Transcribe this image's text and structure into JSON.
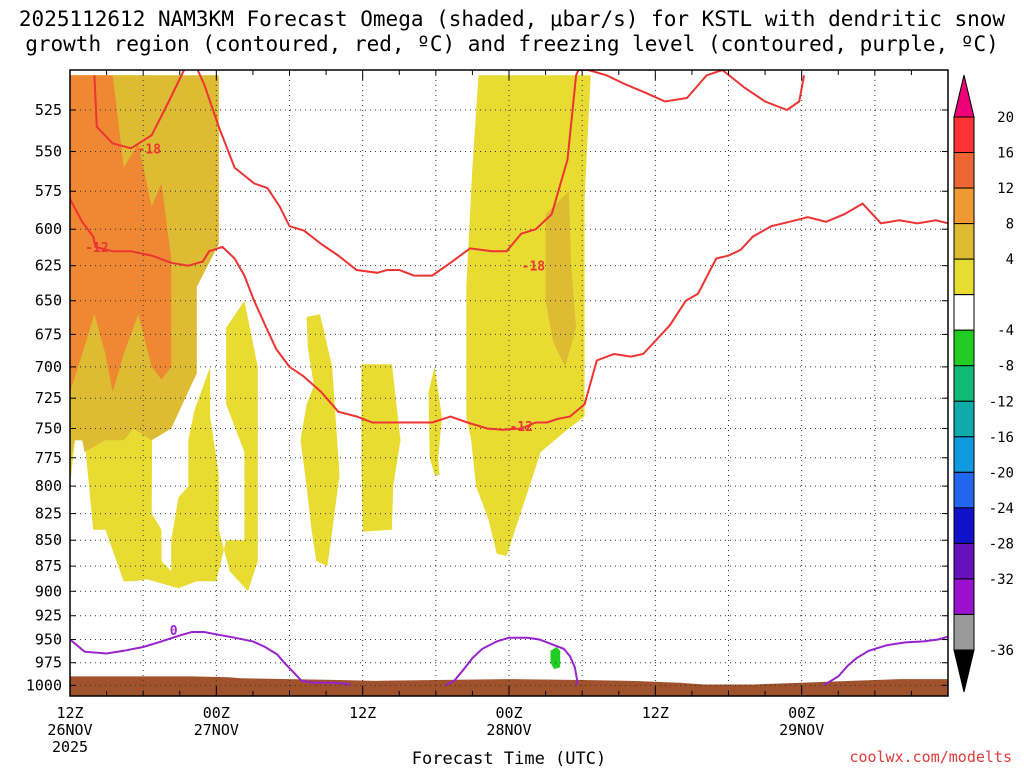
{
  "chart_data": {
    "type": "heatmap",
    "title_line1": "2025112612 NAM3KM Forecast Omega (shaded, μbar/s) for KSTL with dendritic snow",
    "title_line2": "growth region (contoured, red, ºC) and freezing level (contoured, purple, ºC)",
    "xlabel": "Forecast Time (UTC)",
    "credit": "coolwx.com/modelts",
    "x_range_hours": [
      0,
      72
    ],
    "y_range_mb": [
      1012,
      502
    ],
    "y_ticks": [
      525,
      550,
      575,
      600,
      625,
      650,
      675,
      700,
      725,
      750,
      775,
      800,
      825,
      850,
      875,
      900,
      925,
      950,
      975,
      1000
    ],
    "x_ticks": [
      {
        "h": 0,
        "line1": "12Z",
        "line2": "26NOV",
        "line3": "2025"
      },
      {
        "h": 12,
        "line1": "00Z",
        "line2": "27NOV",
        "line3": ""
      },
      {
        "h": 24,
        "line1": "12Z",
        "line2": "",
        "line3": ""
      },
      {
        "h": 36,
        "line1": "00Z",
        "line2": "28NOV",
        "line3": ""
      },
      {
        "h": 48,
        "line1": "12Z",
        "line2": "",
        "line3": ""
      },
      {
        "h": 60,
        "line1": "00Z",
        "line2": "29NOV",
        "line3": ""
      }
    ],
    "colorbar": {
      "levels": [
        "20",
        "16",
        "12",
        "8",
        "4",
        "-4",
        "-8",
        "-12",
        "-16",
        "-20",
        "-24",
        "-28",
        "-32",
        "-36"
      ],
      "colors": [
        "#ee0077",
        "#ff3333",
        "#ee6633",
        "#ee9933",
        "#ddbb33",
        "#e8dc33",
        "#ffffff",
        "#22cc22",
        "#11bb77",
        "#11aaaa",
        "#1199dd",
        "#2266ee",
        "#1111cc",
        "#6611bb",
        "#9911cc",
        "#999999",
        "#000000"
      ]
    },
    "omega_regions": [
      {
        "name": "omega-4to8-left",
        "level": "4-8",
        "color": "#e8dc33",
        "hours": [
          0,
          0.4,
          1.2,
          1.9,
          2.9,
          4.4,
          5.2,
          6.3,
          8.9,
          10.4,
          12,
          12.8,
          14.3,
          14.3,
          12.8,
          12.8,
          14.3,
          15.4,
          15.4,
          14.6,
          13.1,
          12.2,
          12.2,
          11.5,
          11.5,
          10.2,
          9.7,
          9.7,
          8.9,
          8.3,
          8.3,
          7.5,
          7.5,
          6.7,
          6.9,
          6.5,
          4.6,
          2.9,
          1.9,
          1.9,
          0.4,
          0.1
        ],
        "mb": [
          800,
          760,
          760,
          840,
          840,
          890,
          890,
          888,
          897,
          890,
          890,
          850,
          850,
          770,
          730,
          670,
          650,
          700,
          870,
          900,
          880,
          840,
          790,
          740,
          700,
          735,
          760,
          800,
          810,
          850,
          880,
          870,
          840,
          825,
          505,
          505,
          505,
          505,
          505,
          505,
          505,
          505
        ]
      },
      {
        "name": "omega-4to8-col1",
        "level": "4-8",
        "color": "#e8dc33",
        "hours": [
          19.4,
          20.5,
          21.5,
          22.1,
          21.4,
          21.1,
          20.2,
          19.8,
          19.4,
          18.9,
          19.4,
          20.0,
          19.5
        ],
        "mb": [
          662,
          660,
          700,
          790,
          850,
          875,
          870,
          840,
          800,
          760,
          730,
          715,
          685
        ]
      },
      {
        "name": "omega-4to8-col2",
        "level": "4-8",
        "color": "#e8dc33",
        "hours": [
          23.9,
          26.4,
          27.1,
          26.5,
          26.4,
          24.0,
          23.9
        ],
        "mb": [
          698,
          698,
          760,
          800,
          840,
          842,
          780
        ]
      },
      {
        "name": "omega-4to8-col3",
        "level": "4-8",
        "color": "#e8dc33",
        "hours": [
          29.9,
          30.5,
          30.2,
          30.3,
          29.9,
          29.5,
          29.4
        ],
        "mb": [
          700,
          740,
          775,
          790,
          790,
          775,
          720
        ]
      },
      {
        "name": "omega-4to8-right",
        "level": "4-8",
        "color": "#e8dc33",
        "hours": [
          33.5,
          42.7,
          42.2,
          42.2,
          40.9,
          38.6,
          35.8,
          35.0,
          34.3,
          33.3,
          33.0,
          32.9,
          32.5,
          32.5,
          33.0
        ],
        "mb": [
          505,
          505,
          580,
          740,
          750,
          770,
          865,
          863,
          830,
          800,
          770,
          760,
          740,
          640,
          560
        ]
      },
      {
        "name": "omega-8to12-left",
        "level": "8-12",
        "color": "#ddbb33",
        "hours": [
          0,
          0.4,
          1.0,
          1.2,
          2.9,
          4.4,
          5.2,
          6.7,
          8.3,
          10.4,
          10.4,
          12.2,
          12.2,
          2.0,
          0.0
        ],
        "mb": [
          780,
          760,
          760,
          770,
          760,
          760,
          750,
          760,
          750,
          705,
          640,
          610,
          505,
          505,
          505
        ]
      },
      {
        "name": "omega-8to12-right",
        "level": "8-12",
        "color": "#ddbb33",
        "hours": [
          39.0,
          40.9,
          41.1,
          41.5,
          40.6,
          39.6,
          39.0
        ],
        "mb": [
          590,
          575,
          625,
          670,
          700,
          680,
          650
        ]
      },
      {
        "name": "omega-12to16-left",
        "level": "12-16",
        "color": "#ee8833",
        "hours": [
          0,
          1.0,
          2.0,
          2.9,
          3.5,
          4.4,
          5.6,
          6.7,
          7.5,
          8.3,
          8.3,
          7.5,
          6.7,
          5.6,
          4.4,
          3.5,
          2.0,
          1.0,
          0
        ],
        "mb": [
          720,
          690,
          660,
          690,
          720,
          690,
          660,
          700,
          710,
          700,
          620,
          570,
          585,
          545,
          560,
          505,
          505,
          505,
          505
        ]
      },
      {
        "name": "omega-negative",
        "level": "-8 to -4",
        "color": "#22cc22",
        "hours": [
          39.4,
          39.9,
          40.2,
          40.2,
          39.7,
          39.4
        ],
        "mb": [
          962,
          958,
          962,
          980,
          982,
          975
        ]
      }
    ],
    "red_isotherms": [
      {
        "label": "-18",
        "label_h": 6.5,
        "label_mb": 548,
        "hours": [
          2.0,
          2.2,
          3.5,
          5.0,
          6.7,
          8.1,
          9.5,
          10.0,
          11.0,
          12.2,
          13.5,
          15.1,
          16.2,
          17.2,
          18.0,
          19.2,
          20.6,
          22.0,
          23.5,
          25.2,
          26.0,
          27.0,
          28.2,
          29.7,
          31.2,
          32.8,
          34.6,
          35.8,
          37.0,
          38.2,
          39.5,
          40.8,
          41.5,
          41.7,
          42.3,
          42.5,
          44.0,
          45.5,
          47.2,
          48.8,
          50.6,
          52.2,
          53.5,
          55.3,
          57.0,
          58.8,
          59.8,
          60.2
        ],
        "mb": [
          505,
          535,
          545,
          548,
          540,
          520,
          500,
          495,
          510,
          535,
          560,
          570,
          573,
          585,
          598,
          601,
          610,
          618,
          628,
          630,
          628,
          628,
          632,
          632,
          623,
          613,
          615,
          615,
          603,
          600,
          590,
          555,
          505,
          502,
          502,
          502,
          505,
          510,
          515,
          520,
          518,
          505,
          502,
          512,
          520,
          525,
          520,
          505
        ]
      },
      {
        "label": "-12",
        "label_h": 2.2,
        "label_mb": 612,
        "hours": [
          0,
          1.0,
          1.9,
          2.1,
          3.5,
          5.0,
          6.7,
          8.3,
          9.7,
          10.9,
          11.4,
          12.5,
          13.5,
          14.3,
          15.1,
          16.0,
          16.9,
          18.0,
          19.1,
          20.6,
          22.0,
          23.5,
          24.8,
          26.2,
          27.0,
          28.2,
          29.7,
          31.2,
          32.6,
          34.2,
          35.5,
          37.0,
          38.2,
          39.1,
          40.0,
          40.5,
          41.0,
          42.2,
          43.2,
          44.6,
          46.0,
          47.0,
          48.0,
          49.2,
          50.5,
          51.5,
          52.5,
          53.0,
          54.0,
          55.0,
          56.0,
          57.5,
          59.0,
          60.5,
          62.0,
          63.5,
          65.0,
          66.5,
          68.0,
          69.5,
          71.0,
          72.0
        ],
        "mb": [
          580,
          595,
          605,
          612,
          615,
          615,
          618,
          623,
          625,
          622,
          615,
          612,
          620,
          632,
          650,
          668,
          686,
          700,
          707,
          720,
          736,
          740,
          745,
          745,
          745,
          745,
          745,
          740,
          745,
          750,
          751,
          750,
          745,
          745,
          742,
          741,
          740,
          730,
          695,
          690,
          692,
          690,
          680,
          668,
          650,
          645,
          628,
          620,
          618,
          614,
          605,
          598,
          595,
          592,
          595,
          590,
          583,
          596,
          594,
          596,
          594,
          596
        ]
      }
    ],
    "purple_isotherm": {
      "label": "0",
      "label_h": 8.5,
      "label_mb": 940,
      "segments": [
        {
          "hours": [
            0,
            1.2,
            3.0,
            4.4,
            6.0,
            7.5,
            8.9,
            10.0,
            11.0,
            12.2,
            13.5,
            15.0,
            16.0,
            17.0,
            17.5,
            18.3,
            19.0,
            20.0,
            21.5,
            22.5,
            23.0
          ],
          "mb": [
            950,
            963,
            965,
            962,
            958,
            952,
            946,
            942,
            942,
            945,
            948,
            952,
            958,
            966,
            974,
            985,
            995,
            997,
            997,
            998,
            999
          ]
        },
        {
          "hours": [
            30.8,
            31.5,
            32.3,
            33.0,
            33.8,
            35.0,
            36.0,
            37.5,
            38.5,
            39.5,
            40.5,
            41.0,
            41.4,
            41.6,
            41.5
          ],
          "mb": [
            1000,
            995,
            982,
            970,
            960,
            952,
            948,
            948,
            950,
            955,
            960,
            968,
            980,
            995,
            1000
          ]
        },
        {
          "hours": [
            61.8,
            63.0,
            63.8,
            64.5,
            65.5,
            67.0,
            68.5,
            70.0,
            71.2,
            72.0
          ],
          "mb": [
            1000,
            990,
            978,
            970,
            962,
            956,
            953,
            952,
            950,
            947
          ]
        }
      ]
    },
    "surface": {
      "color": "#a0522d",
      "hours": [
        0,
        5,
        10,
        13,
        14,
        18,
        22,
        25,
        30,
        36,
        42,
        46,
        50,
        52,
        56,
        60,
        64,
        68,
        72
      ],
      "mb": [
        990,
        990,
        990,
        991,
        992,
        993,
        994,
        995,
        994,
        993,
        994,
        995,
        997,
        999,
        999,
        997,
        995,
        993,
        993
      ]
    }
  }
}
